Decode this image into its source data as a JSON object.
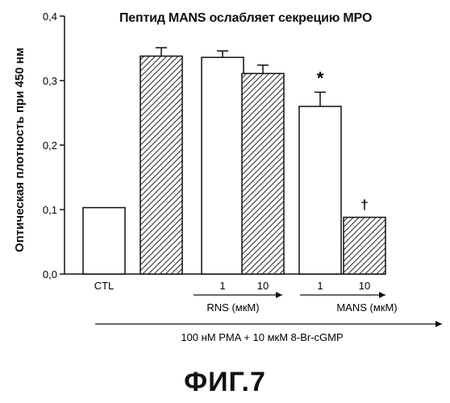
{
  "chart_data": {
    "type": "bar",
    "title": "Пептид MANS ослабляет секрецию MPO",
    "ylabel": "Оптическая плотность при 450 нм",
    "ylim": [
      0,
      0.4
    ],
    "yticks": [
      "0,0",
      "0,1",
      "0,2",
      "0,3",
      "0,4"
    ],
    "bars": [
      {
        "value": 0.103,
        "error": 0,
        "pattern": "open",
        "label": "CTL",
        "mark": ""
      },
      {
        "value": 0.338,
        "error": 0.013,
        "pattern": "hatched",
        "label": "",
        "mark": ""
      },
      {
        "value": 0.336,
        "error": 0.01,
        "pattern": "open",
        "label": "1",
        "mark": ""
      },
      {
        "value": 0.311,
        "error": 0.013,
        "pattern": "hatched",
        "label": "10",
        "mark": ""
      },
      {
        "value": 0.26,
        "error": 0.022,
        "pattern": "open",
        "label": "1",
        "mark": "*"
      },
      {
        "value": 0.088,
        "error": 0,
        "pattern": "hatched",
        "label": "10",
        "mark": "†"
      }
    ],
    "group_labels": [
      "RNS (мкМ)",
      "MANS (мкМ)"
    ],
    "treatment_label": "100 нМ PMA + 10 мкМ 8-Br-cGMP"
  },
  "figure_caption": "ФИГ.7"
}
